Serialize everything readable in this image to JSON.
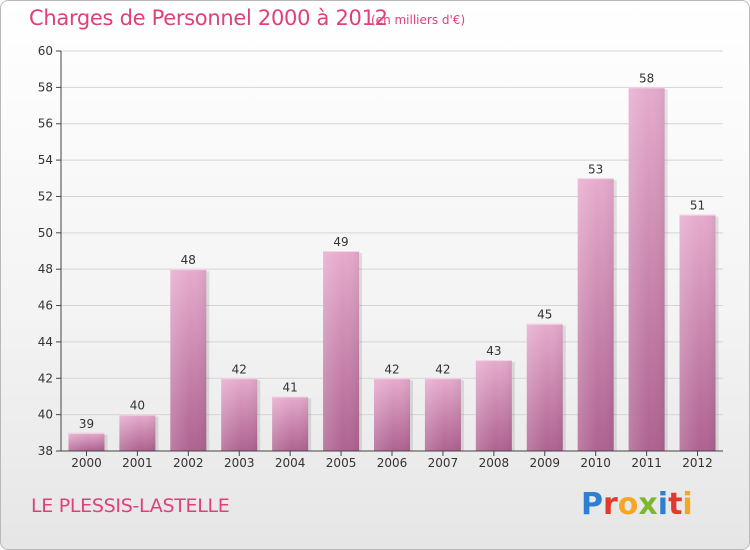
{
  "title": "Charges de Personnel 2000 à 2012",
  "subtitle": "(en milliers d'€)",
  "town": "LE PLESSIS-LASTELLE",
  "logo": {
    "letters": [
      {
        "ch": "P",
        "color": "#2f7fd0"
      },
      {
        "ch": "r",
        "color": "#e23b2e"
      },
      {
        "ch": "o",
        "color": "#f5a623"
      },
      {
        "ch": "x",
        "color": "#7cb82f"
      },
      {
        "ch": "i",
        "color": "#2f7fd0"
      },
      {
        "ch": "t",
        "color": "#e23b2e"
      },
      {
        "ch": "i",
        "color": "#f5a623"
      }
    ]
  },
  "colors": {
    "accent": "#e0407a",
    "bar_top": "#e5a7cb",
    "bar_bottom": "#b0638f",
    "axis": "#444444",
    "grid": "#d5d5d5"
  },
  "chart_data": {
    "type": "bar",
    "title": "Charges de Personnel 2000 à 2012",
    "subtitle": "(en milliers d'€)",
    "categories": [
      "2000",
      "2001",
      "2002",
      "2003",
      "2004",
      "2005",
      "2006",
      "2007",
      "2008",
      "2009",
      "2010",
      "2011",
      "2012"
    ],
    "values": [
      39,
      40,
      48,
      42,
      41,
      49,
      42,
      42,
      43,
      45,
      53,
      58,
      51
    ],
    "ylim": [
      38,
      60
    ],
    "yticks": [
      38,
      40,
      42,
      44,
      46,
      48,
      50,
      52,
      54,
      56,
      58,
      60
    ],
    "grid": "horizontal",
    "data_labels": true
  }
}
